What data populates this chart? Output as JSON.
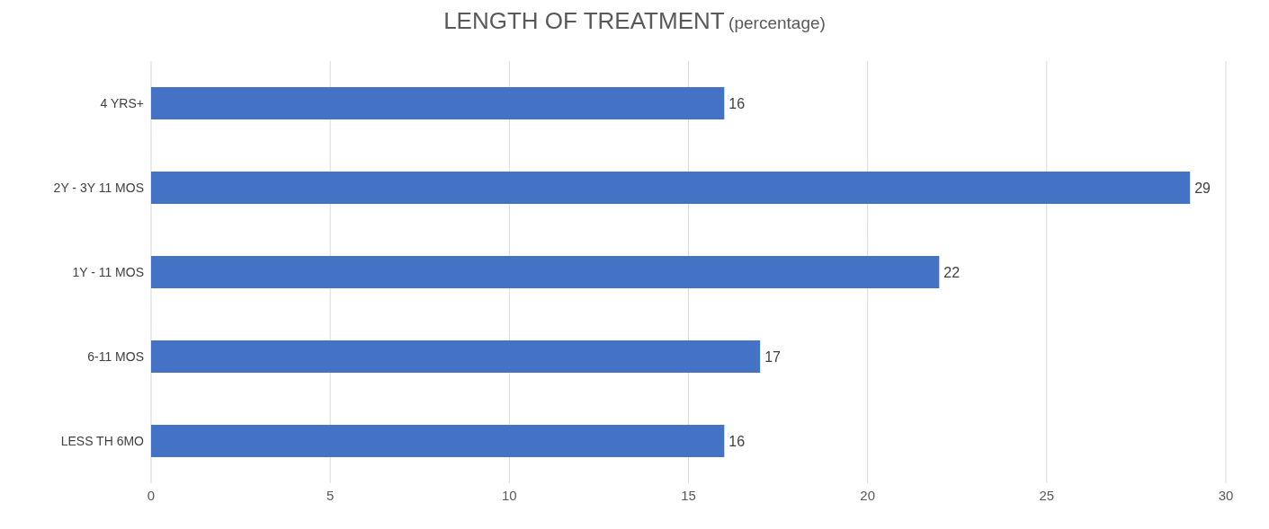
{
  "chart_data": {
    "type": "bar",
    "orientation": "horizontal",
    "title": "LENGTH OF TREATMENT",
    "subtitle": "(percentage)",
    "categories": [
      "4 YRS+",
      "2Y - 3Y 11 MOS",
      "1Y - 11 MOS",
      "6-11 MOS",
      "LESS TH 6MO"
    ],
    "values": [
      16,
      29,
      22,
      17,
      16
    ],
    "color": "#4472c4",
    "xlim": [
      0,
      30
    ],
    "xticks": [
      0,
      5,
      10,
      15,
      20,
      25,
      30
    ],
    "grid": "x",
    "data_labels": true
  }
}
